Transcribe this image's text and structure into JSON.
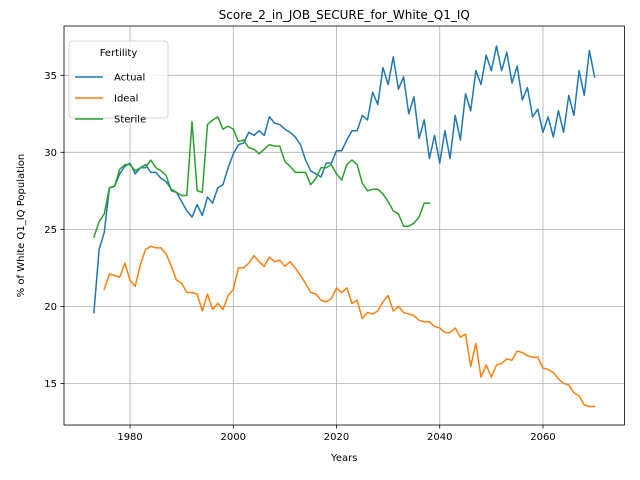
{
  "chart_data": {
    "type": "line",
    "title": "Score_2_in_JOB_SECURE_for_White_Q1_IQ",
    "xlabel": "Years",
    "ylabel": "% of White Q1_IQ Population",
    "xlim": [
      1967.2,
      2075.8
    ],
    "ylim": [
      12.3,
      38.2
    ],
    "xticks": [
      1980,
      2000,
      2020,
      2040,
      2060
    ],
    "yticks": [
      15,
      20,
      25,
      30,
      35
    ],
    "grid": true,
    "legend": {
      "title": "Fertility",
      "location": "upper left"
    },
    "series": [
      {
        "name": "Actual",
        "color": "#1f77b4",
        "x": [
          1973,
          1974,
          1975,
          1976,
          1977,
          1978,
          1979,
          1980,
          1981,
          1982,
          1983,
          1984,
          1985,
          1986,
          1987,
          1988,
          1989,
          1990,
          1991,
          1992,
          1993,
          1994,
          1995,
          1996,
          1997,
          1998,
          1999,
          2000,
          2001,
          2002,
          2003,
          2004,
          2005,
          2006,
          2007,
          2008,
          2009,
          2010,
          2011,
          2012,
          2013,
          2014,
          2015,
          2016,
          2017,
          2018,
          2019,
          2020,
          2021,
          2022,
          2023,
          2024,
          2025,
          2026,
          2027,
          2028,
          2029,
          2030,
          2031,
          2032,
          2033,
          2034,
          2035,
          2036,
          2037,
          2038,
          2039,
          2040,
          2041,
          2042,
          2043,
          2044,
          2045,
          2046,
          2047,
          2048,
          2049,
          2050,
          2051,
          2052,
          2053,
          2054,
          2055,
          2056,
          2057,
          2058,
          2059,
          2060,
          2061,
          2062,
          2063,
          2064,
          2065,
          2066,
          2067,
          2068,
          2069,
          2070
        ],
        "values": [
          19.6,
          23.7,
          24.8,
          27.7,
          27.8,
          28.6,
          29.1,
          29.3,
          28.6,
          29.0,
          29.2,
          28.7,
          28.7,
          28.3,
          28.1,
          27.6,
          27.4,
          26.8,
          26.2,
          25.8,
          26.6,
          25.9,
          27.1,
          26.7,
          27.7,
          27.9,
          29.0,
          29.9,
          30.5,
          30.6,
          31.3,
          31.1,
          31.4,
          31.1,
          32.3,
          31.9,
          31.8,
          31.5,
          31.3,
          31.0,
          30.5,
          29.5,
          28.8,
          28.6,
          28.4,
          29.3,
          29.3,
          30.1,
          30.1,
          30.8,
          31.4,
          31.4,
          32.4,
          32.1,
          33.9,
          33.1,
          35.5,
          34.4,
          36.2,
          34.1,
          34.9,
          32.5,
          33.6,
          30.9,
          32.1,
          29.6,
          31.1,
          29.3,
          31.4,
          29.6,
          32.4,
          30.8,
          33.8,
          32.7,
          35.3,
          34.4,
          36.3,
          35.3,
          36.9,
          35.3,
          36.5,
          34.5,
          35.6,
          33.4,
          34.2,
          32.3,
          32.8,
          31.3,
          32.3,
          31.0,
          32.7,
          31.3,
          33.7,
          32.4,
          35.3,
          33.7,
          36.6,
          34.9
        ]
      },
      {
        "name": "Ideal",
        "color": "#ff7f0e",
        "x": [
          1975,
          1976,
          1977,
          1978,
          1979,
          1980,
          1981,
          1982,
          1983,
          1984,
          1985,
          1986,
          1987,
          1988,
          1989,
          1990,
          1991,
          1992,
          1993,
          1994,
          1995,
          1996,
          1997,
          1998,
          1999,
          2000,
          2001,
          2002,
          2003,
          2004,
          2005,
          2006,
          2007,
          2008,
          2009,
          2010,
          2011,
          2012,
          2013,
          2014,
          2015,
          2016,
          2017,
          2018,
          2019,
          2020,
          2021,
          2022,
          2023,
          2024,
          2025,
          2026,
          2027,
          2028,
          2029,
          2030,
          2031,
          2032,
          2033,
          2034,
          2035,
          2036,
          2037,
          2038,
          2039,
          2040,
          2041,
          2042,
          2043,
          2044,
          2045,
          2046,
          2047,
          2048,
          2049,
          2050,
          2051,
          2052,
          2053,
          2054,
          2055,
          2056,
          2057,
          2058,
          2059,
          2060,
          2061,
          2062,
          2063,
          2064,
          2065,
          2066,
          2067,
          2068,
          2069,
          2070
        ],
        "values": [
          21.1,
          22.1,
          22.0,
          21.9,
          22.8,
          21.7,
          21.3,
          22.7,
          23.7,
          23.9,
          23.8,
          23.8,
          23.4,
          22.6,
          21.7,
          21.5,
          20.9,
          20.9,
          20.8,
          19.7,
          20.8,
          19.8,
          20.2,
          19.8,
          20.7,
          21.1,
          22.5,
          22.5,
          22.8,
          23.3,
          22.9,
          22.6,
          23.2,
          22.9,
          23.0,
          22.6,
          22.9,
          22.5,
          22.0,
          21.5,
          20.9,
          20.8,
          20.4,
          20.3,
          20.5,
          21.2,
          20.9,
          21.2,
          20.2,
          20.4,
          19.2,
          19.6,
          19.5,
          19.7,
          20.3,
          20.7,
          19.7,
          20.0,
          19.6,
          19.5,
          19.4,
          19.1,
          19.0,
          19.0,
          18.7,
          18.6,
          18.3,
          18.3,
          18.6,
          18.0,
          18.2,
          16.1,
          17.6,
          15.4,
          16.2,
          15.4,
          16.2,
          16.3,
          16.6,
          16.5,
          17.1,
          17.0,
          16.8,
          16.7,
          16.7,
          16.0,
          15.9,
          15.7,
          15.3,
          15.0,
          14.9,
          14.4,
          14.2,
          13.6,
          13.5,
          13.5
        ]
      },
      {
        "name": "Sterile",
        "color": "#2ca02c",
        "x": [
          1973,
          1974,
          1975,
          1976,
          1977,
          1978,
          1979,
          1980,
          1981,
          1982,
          1983,
          1984,
          1985,
          1986,
          1987,
          1988,
          1989,
          1990,
          1991,
          1992,
          1993,
          1994,
          1995,
          1996,
          1997,
          1998,
          1999,
          2000,
          2001,
          2002,
          2003,
          2004,
          2005,
          2006,
          2007,
          2008,
          2009,
          2010,
          2011,
          2012,
          2013,
          2014,
          2015,
          2016,
          2017,
          2018,
          2019,
          2020,
          2021,
          2022,
          2023,
          2024,
          2025,
          2026,
          2027,
          2028,
          2029,
          2030,
          2031,
          2032,
          2033,
          2034,
          2035,
          2036,
          2037,
          2038
        ],
        "values": [
          24.5,
          25.5,
          26.0,
          27.7,
          27.8,
          28.9,
          29.2,
          29.2,
          28.8,
          29.0,
          29.0,
          29.5,
          29.0,
          28.8,
          28.5,
          27.5,
          27.4,
          27.2,
          27.2,
          32.0,
          27.5,
          27.4,
          31.8,
          32.1,
          32.3,
          31.5,
          31.7,
          31.5,
          30.7,
          30.8,
          30.3,
          30.2,
          29.9,
          30.2,
          30.5,
          30.4,
          30.4,
          29.4,
          29.1,
          28.7,
          28.7,
          28.7,
          27.9,
          28.3,
          29.0,
          29.0,
          29.2,
          28.6,
          28.2,
          29.2,
          29.5,
          29.2,
          28.0,
          27.5,
          27.6,
          27.6,
          27.3,
          26.8,
          26.2,
          26.0,
          25.2,
          25.2,
          25.4,
          25.8,
          26.7,
          26.7
        ]
      }
    ]
  }
}
